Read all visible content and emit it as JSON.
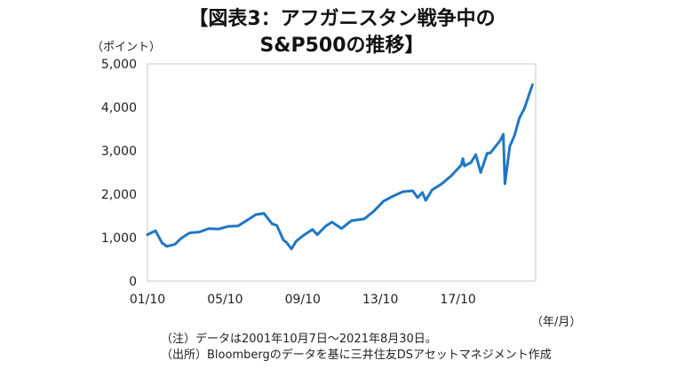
{
  "chart_data": {
    "type": "line",
    "title": "【図表3：アフガニスタン戦争中の",
    "subtitle": "S&P500の推移】",
    "ylabel": "（ポイント）",
    "xlabel": "（年/月）",
    "ylim": [
      0,
      5000
    ],
    "yticks": [
      0,
      1000,
      2000,
      3000,
      4000,
      5000
    ],
    "ytick_labels": [
      "0",
      "1,000",
      "2,000",
      "3,000",
      "4,000",
      "5,000"
    ],
    "xticks": [
      "2001-10",
      "2005-10",
      "2009-10",
      "2013-10",
      "2017-10"
    ],
    "xtick_labels": [
      "01/10",
      "05/10",
      "09/10",
      "13/10",
      "17/10"
    ],
    "xlim": [
      "2001-10",
      "2021-10"
    ],
    "grid": false,
    "line_color": "#1f77c4",
    "series": [
      {
        "x": [
          "2001-10",
          "2002-03",
          "2002-07",
          "2002-10",
          "2003-03",
          "2003-07",
          "2003-12",
          "2004-06",
          "2004-12",
          "2005-06",
          "2005-12",
          "2006-06",
          "2006-12",
          "2007-05",
          "2007-10",
          "2008-03",
          "2008-06",
          "2008-10",
          "2008-12",
          "2009-03",
          "2009-06",
          "2009-10",
          "2010-04",
          "2010-07",
          "2010-12",
          "2011-04",
          "2011-10",
          "2012-04",
          "2012-12",
          "2013-06",
          "2013-12",
          "2014-06",
          "2014-12",
          "2015-06",
          "2015-09",
          "2015-12",
          "2016-02",
          "2016-06",
          "2016-12",
          "2017-06",
          "2017-12",
          "2018-01",
          "2018-02",
          "2018-06",
          "2018-09",
          "2018-12",
          "2019-04",
          "2019-06",
          "2019-12",
          "2020-02",
          "2020-03",
          "2020-06",
          "2020-09",
          "2020-12",
          "2021-03",
          "2021-06",
          "2021-08"
        ],
        "values": [
          1070,
          1160,
          880,
          800,
          850,
          990,
          1110,
          1130,
          1210,
          1200,
          1260,
          1270,
          1410,
          1530,
          1560,
          1320,
          1280,
          950,
          890,
          740,
          920,
          1040,
          1190,
          1070,
          1260,
          1360,
          1210,
          1390,
          1430,
          1610,
          1840,
          1960,
          2060,
          2080,
          1920,
          2040,
          1860,
          2100,
          2240,
          2430,
          2670,
          2820,
          2650,
          2730,
          2910,
          2500,
          2940,
          2950,
          3230,
          3380,
          2240,
          3100,
          3360,
          3760,
          3970,
          4300,
          4520
        ]
      }
    ]
  },
  "notes": [
    "（注）データは2001年10月7日～2021年8月30日。",
    "（出所）Bloombergのデータを基に三井住友DSアセットマネジメント作成"
  ]
}
